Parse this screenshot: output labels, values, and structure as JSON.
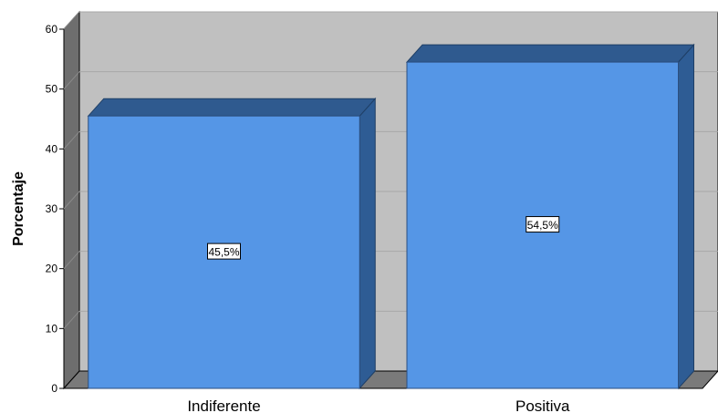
{
  "chart_data": {
    "type": "bar",
    "categories": [
      "Indiferente",
      "Positiva"
    ],
    "values": [
      45.5,
      54.5
    ],
    "data_labels": [
      "45,5%",
      "54,5%"
    ],
    "title": "",
    "xlabel": "",
    "ylabel": "Porcentaje",
    "ylim": [
      0,
      60
    ],
    "yticks": [
      0,
      10,
      20,
      30,
      40,
      50,
      60
    ],
    "grid": true,
    "style": "3d",
    "colors": {
      "bar_front": "#5596e6",
      "bar_top": "#2f5a8f",
      "bar_side": "#2e5c94",
      "wall_back": "#c0c0c0",
      "wall_side": "#6e6e6e",
      "floor": "#7a7a7a"
    }
  }
}
